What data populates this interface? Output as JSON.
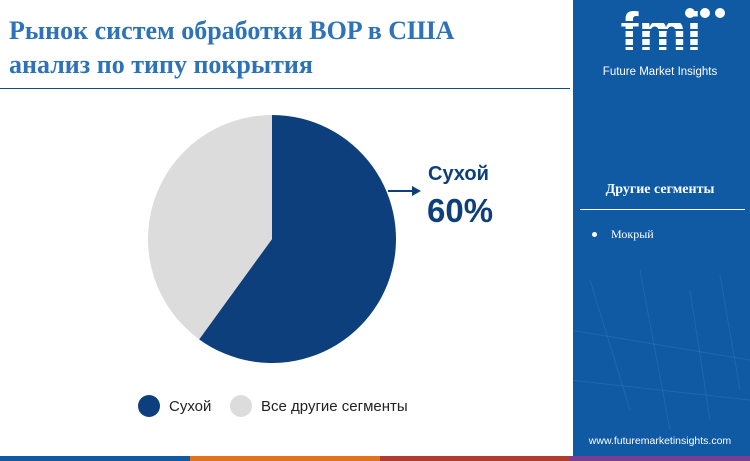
{
  "title": {
    "line1": "Рынок систем обработки BOP в США",
    "line2": "анализ по типу покрытия"
  },
  "chart_data": {
    "type": "pie",
    "slices": [
      {
        "label": "Сухой",
        "value": 60,
        "color": "#0d3f7c"
      },
      {
        "label": "Все другие сегменты",
        "value": 40,
        "color": "#dcdcdc"
      }
    ],
    "start_angle_deg": 0,
    "direction": "clockwise",
    "callout": {
      "label": "Сухой",
      "value": "60%"
    },
    "legend": [
      "Сухой",
      "Все другие сегменты"
    ],
    "legend_position": "bottom"
  },
  "sidebar": {
    "logo_text": "fmi",
    "logo_subtitle": "Future Market Insights",
    "heading": "Другие сегменты",
    "items": [
      "Мокрый"
    ],
    "url": "www.futuremarketinsights.com"
  },
  "colors": {
    "brand_blue": "#0f5aa3",
    "dark_blue": "#0d3f7c",
    "title_blue": "#2e73b8",
    "bar_segments": [
      "#0f5aa3",
      "#e2731d",
      "#b13b2e",
      "#7a3d8f"
    ]
  }
}
